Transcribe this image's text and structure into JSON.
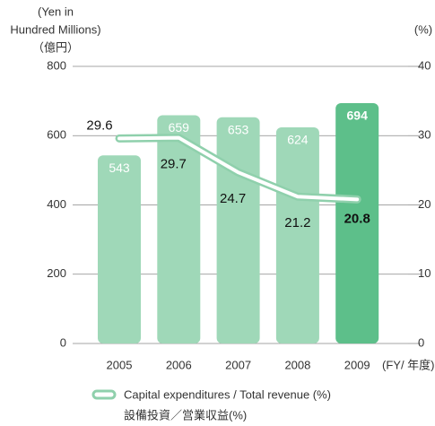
{
  "chart_data": {
    "type": "bar",
    "y_label": [
      "(Yen in",
      "Hundred Millions)",
      "（億円）"
    ],
    "y2_label": "(%)",
    "x_label": "(FY/ 年度)",
    "categories": [
      "2005",
      "2006",
      "2007",
      "2008",
      "2009"
    ],
    "series": [
      {
        "name": "Capital expenditures",
        "type": "bar",
        "colors": [
          "#9fd8b8",
          "#9fd8b8",
          "#9fd8b8",
          "#9fd8b8",
          "#5dbf8a"
        ],
        "values": [
          543,
          659,
          653,
          624,
          694
        ]
      },
      {
        "name": "Capital expenditures / Total revenue (%)",
        "name_ja": "設備投資／営業収益(%)",
        "type": "line",
        "axis": "y2",
        "color": "#8fd0ac",
        "values": [
          29.6,
          29.7,
          24.7,
          21.2,
          20.8
        ]
      }
    ],
    "ylim": [
      0,
      800
    ],
    "yticks": [
      0,
      200,
      400,
      600,
      800
    ],
    "y2lim": [
      0,
      40
    ],
    "y2ticks": [
      0,
      10,
      20,
      30,
      40
    ],
    "grid": true
  }
}
